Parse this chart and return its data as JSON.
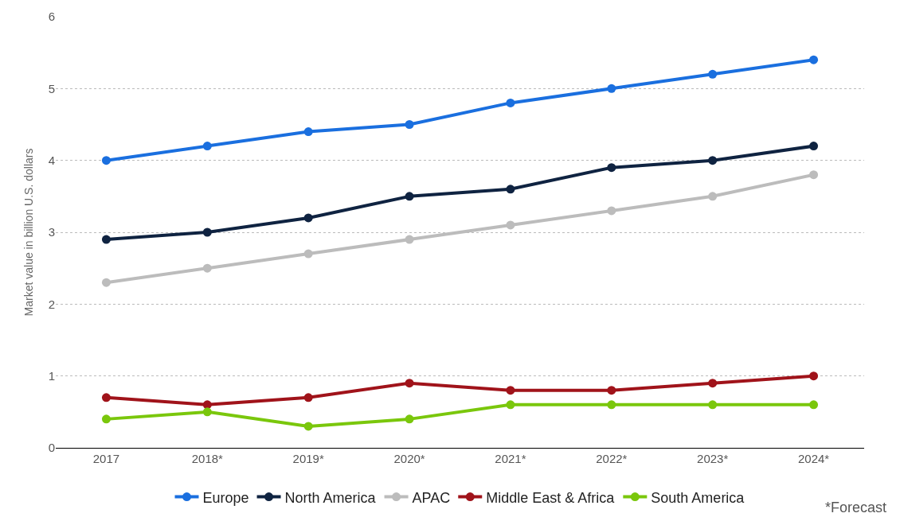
{
  "chart_data": {
    "type": "line",
    "ylabel": "Market value in billion U.S. dollars",
    "categories": [
      "2017",
      "2018*",
      "2019*",
      "2020*",
      "2021*",
      "2022*",
      "2023*",
      "2024*"
    ],
    "series": [
      {
        "name": "Europe",
        "color": "#1a6fdf",
        "values": [
          4.0,
          4.2,
          4.4,
          4.5,
          4.8,
          5.0,
          5.2,
          5.4
        ]
      },
      {
        "name": "North America",
        "color": "#0f2341",
        "values": [
          2.9,
          3.0,
          3.2,
          3.5,
          3.6,
          3.9,
          4.0,
          4.2
        ]
      },
      {
        "name": "APAC",
        "color": "#bcbcbc",
        "values": [
          2.3,
          2.5,
          2.7,
          2.9,
          3.1,
          3.3,
          3.5,
          3.8
        ]
      },
      {
        "name": "Middle East & Africa",
        "color": "#a0131a",
        "values": [
          0.7,
          0.6,
          0.7,
          0.9,
          0.8,
          0.8,
          0.9,
          1.0
        ]
      },
      {
        "name": "South America",
        "color": "#7ac70c",
        "values": [
          0.4,
          0.5,
          0.3,
          0.4,
          0.6,
          0.6,
          0.6,
          0.6
        ]
      }
    ],
    "ylim": [
      0,
      6
    ],
    "yticks": [
      0,
      1,
      2,
      3,
      4,
      5,
      6
    ],
    "grid": "y",
    "legend": "bottom",
    "marker": "circle",
    "line_style": "solid",
    "annotations": [
      "*Forecast"
    ]
  }
}
